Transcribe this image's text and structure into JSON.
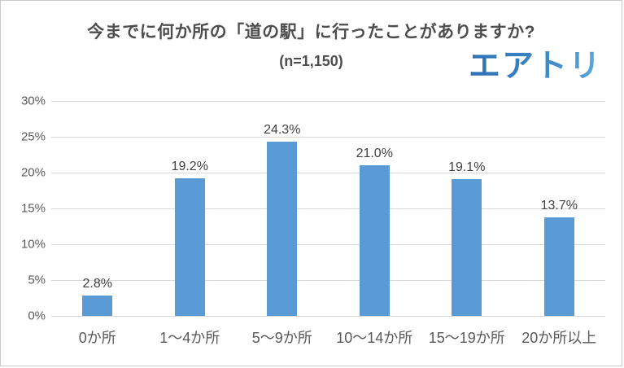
{
  "page": {
    "background_color": "#ffffff",
    "border_color": "#c9c9c9"
  },
  "header": {
    "title": "今までに何か所の「道の駅」に行ったことがありますか?",
    "subtitle": "(n=1,150)"
  },
  "brand": {
    "logo_text": "エアトリ",
    "logo_color_start": "#2d71b4",
    "logo_color_end": "#5fa9dc"
  },
  "chart_data": {
    "type": "bar",
    "title": "今までに何か所の「道の駅」に行ったことがありますか?",
    "subtitle": "(n=1,150)",
    "categories": [
      "0か所",
      "1〜4か所",
      "5〜9か所",
      "10〜14か所",
      "15〜19か所",
      "20か所以上"
    ],
    "values": [
      2.8,
      19.2,
      24.3,
      21.0,
      19.1,
      13.7
    ],
    "value_labels": [
      "2.8%",
      "19.2%",
      "24.3%",
      "21.0%",
      "19.1%",
      "13.7%"
    ],
    "ylim": [
      0,
      30
    ],
    "ytick_step": 5,
    "ytick_labels": [
      "0%",
      "5%",
      "10%",
      "15%",
      "20%",
      "25%",
      "30%"
    ],
    "xlabel": "",
    "ylabel": "",
    "grid": true,
    "legend": "none",
    "bar_color": "#5b9bd5",
    "gridline_color": "#d9d9d9",
    "axis_text_color": "#595959",
    "label_text_color": "#404040"
  }
}
